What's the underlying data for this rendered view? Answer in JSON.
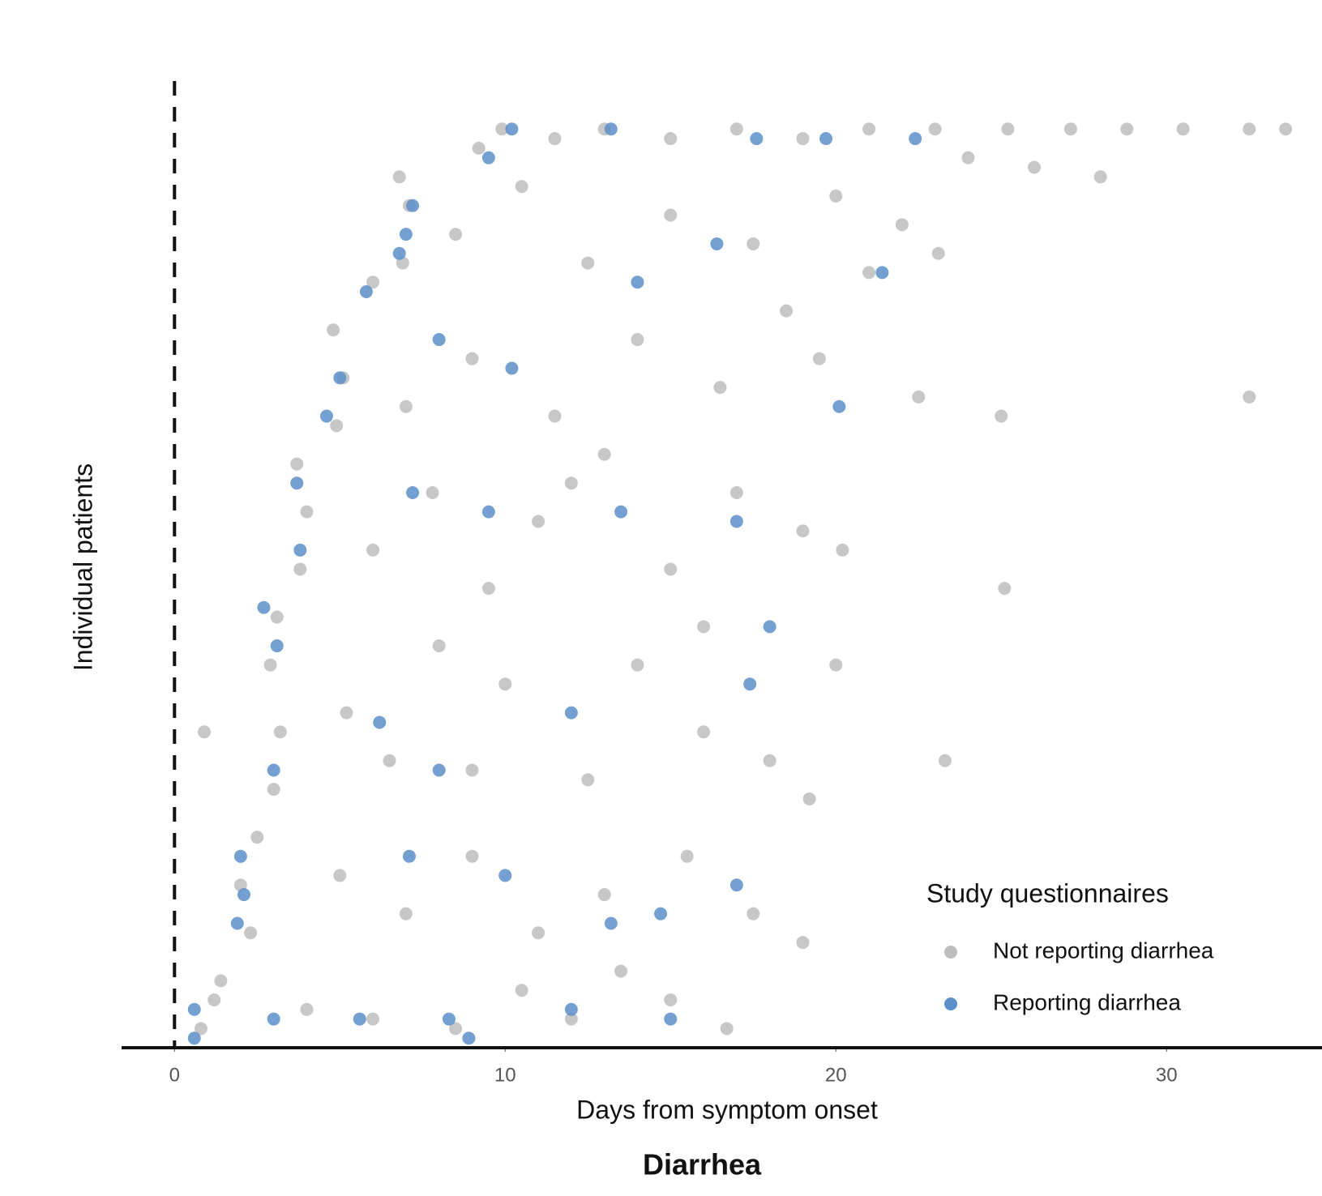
{
  "chart_data": {
    "type": "scatter",
    "title": "Diarrhea",
    "x_label": "Days from symptom onset",
    "y_label": "Individual patients",
    "legend_title": "Study questionnaires",
    "legend_position": "bottom-right",
    "xlim": [
      -1.6,
      34.7
    ],
    "ylim": [
      0,
      100
    ],
    "xticks": [
      0,
      10,
      20,
      30
    ],
    "vline": 0,
    "grid": false,
    "series": [
      {
        "name": "Not reporting diarrhea",
        "color": "#bdbdbd",
        "x": [
          0.8,
          1.2,
          1.4,
          4,
          6,
          8.5,
          10.5,
          12,
          13.5,
          15,
          16.7,
          2.3,
          2,
          2.5,
          5,
          7,
          9,
          11,
          13,
          15.5,
          17.5,
          19,
          3,
          3.2,
          2.9,
          3.1,
          5.2,
          6.5,
          8,
          10,
          12.5,
          14,
          16,
          18,
          19.2,
          20,
          23.3,
          0.9,
          3.8,
          4,
          3.7,
          6,
          7.8,
          9.5,
          11,
          13,
          15,
          17,
          19,
          20.2,
          25.1,
          4.9,
          5.1,
          4.8,
          7,
          9,
          11.5,
          14,
          16.5,
          19.5,
          22.5,
          25,
          32.5,
          6,
          6.9,
          7.1,
          6.8,
          8.5,
          10.5,
          12.5,
          15,
          17.5,
          20,
          22,
          23.1,
          9.2,
          9.9,
          11.5,
          13,
          15,
          17,
          19,
          21,
          23,
          25.2,
          27.1,
          28.8,
          30.5,
          32.5,
          33.6,
          24,
          26,
          28,
          12,
          9,
          16,
          18.5,
          21
        ],
        "values": [
          2,
          5,
          7,
          4,
          3,
          2,
          6,
          3,
          8,
          5,
          2,
          12,
          17,
          22,
          18,
          14,
          20,
          12,
          16,
          20,
          14,
          11,
          27,
          33,
          40,
          45,
          35,
          30,
          42,
          38,
          28,
          40,
          33,
          30,
          26,
          40,
          30,
          33,
          50,
          56,
          61,
          52,
          58,
          48,
          55,
          62,
          50,
          58,
          54,
          52,
          48,
          65,
          70,
          75,
          67,
          72,
          66,
          74,
          69,
          72,
          68,
          66,
          68,
          80,
          82,
          88,
          91,
          85,
          90,
          82,
          87,
          84,
          89,
          86,
          83,
          94,
          96,
          95,
          96,
          95,
          96,
          95,
          96,
          96,
          96,
          96,
          96,
          96,
          96,
          96,
          93,
          92,
          91,
          59,
          29,
          44,
          77,
          81
        ]
      },
      {
        "name": "Reporting diarrhea",
        "color": "#5b8fc9",
        "x": [
          0.6,
          0.6,
          3,
          5.6,
          8.3,
          8.9,
          12,
          15,
          2,
          2.1,
          1.9,
          7.1,
          10,
          13.2,
          14.7,
          17,
          2.7,
          3.1,
          3,
          6.2,
          8,
          12,
          17.4,
          18,
          3.8,
          3.7,
          7.2,
          9.5,
          13.5,
          17,
          5,
          4.6,
          8,
          10.2,
          20.1,
          5.8,
          7,
          7.2,
          6.8,
          9.5,
          10.2,
          13.2,
          17.6,
          19.7,
          22.4,
          14,
          16.4,
          21.4
        ],
        "values": [
          4,
          1,
          3,
          3,
          3,
          1,
          4,
          3,
          20,
          16,
          13,
          20,
          18,
          13,
          14,
          17,
          46,
          42,
          29,
          34,
          29,
          35,
          38,
          44,
          52,
          59,
          58,
          56,
          56,
          55,
          70,
          66,
          74,
          71,
          67,
          79,
          85,
          88,
          83,
          93,
          96,
          96,
          95,
          95,
          95,
          80,
          84,
          81
        ]
      }
    ]
  }
}
